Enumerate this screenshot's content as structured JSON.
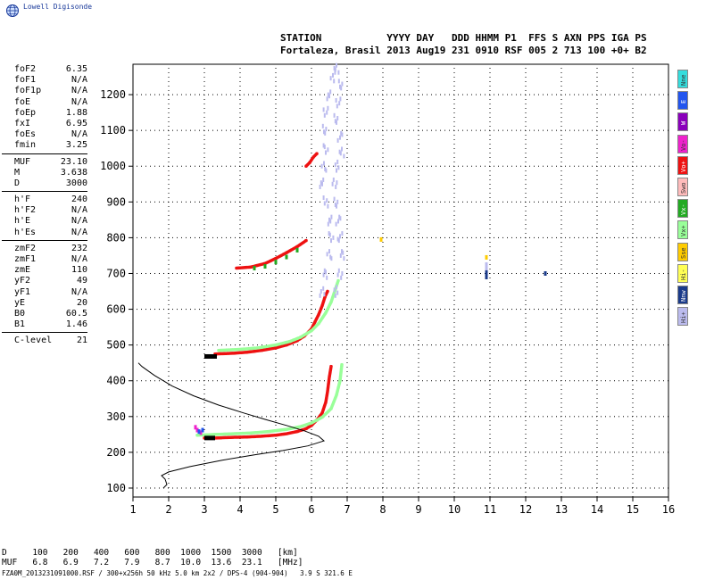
{
  "app": {
    "brand": "Lowell Digisonde",
    "logo_icon": "globe-icon"
  },
  "header": {
    "line1": "STATION           YYYY DAY   DDD HHMM P1  FFS S AXN PPS IGA PS",
    "line2": "Fortaleza, Brasil 2013 Aug19 231 0910 RSF 005 2 713 100 +0+ B2"
  },
  "parameters": {
    "group1": [
      {
        "label": "foF2",
        "value": "6.35"
      },
      {
        "label": "foF1",
        "value": "N/A"
      },
      {
        "label": "foF1p",
        "value": "N/A"
      },
      {
        "label": "foE",
        "value": "N/A"
      },
      {
        "label": "foEp",
        "value": "1.88"
      },
      {
        "label": "fxI",
        "value": "6.95"
      },
      {
        "label": "foEs",
        "value": "N/A"
      },
      {
        "label": "fmin",
        "value": "3.25"
      }
    ],
    "group2": [
      {
        "label": "MUF",
        "value": "23.10"
      },
      {
        "label": "M",
        "value": "3.638"
      },
      {
        "label": "D",
        "value": "3000"
      }
    ],
    "group3": [
      {
        "label": "h'F",
        "value": "240"
      },
      {
        "label": "h'F2",
        "value": "N/A"
      },
      {
        "label": "h'E",
        "value": "N/A"
      },
      {
        "label": "h'Es",
        "value": "N/A"
      }
    ],
    "group4": [
      {
        "label": "zmF2",
        "value": "232"
      },
      {
        "label": "zmF1",
        "value": "N/A"
      },
      {
        "label": "zmE",
        "value": "110"
      },
      {
        "label": "yF2",
        "value": "49"
      },
      {
        "label": "yF1",
        "value": "N/A"
      },
      {
        "label": "yE",
        "value": "20"
      },
      {
        "label": "B0",
        "value": "60.5"
      },
      {
        "label": "B1",
        "value": "1.46"
      }
    ],
    "group5": [
      {
        "label": "C-level",
        "value": "21"
      }
    ]
  },
  "legend": [
    {
      "label": "Nne",
      "color": "#33dddd"
    },
    {
      "label": "E",
      "color": "#2255ee"
    },
    {
      "label": "W",
      "color": "#8a00bb"
    },
    {
      "label": "Vo-",
      "color": "#ee22cc"
    },
    {
      "label": "Vo+",
      "color": "#ee1111"
    },
    {
      "label": "Swo",
      "color": "#ffbbbb"
    },
    {
      "label": "Vx-",
      "color": "#22aa22"
    },
    {
      "label": "Vx+",
      "color": "#99ff99"
    },
    {
      "label": "Sse",
      "color": "#ffcc00"
    },
    {
      "label": "Hi-",
      "color": "#ffff55"
    },
    {
      "label": "Nnw",
      "color": "#1a3a8a"
    },
    {
      "label": "Hi+",
      "color": "#bbbbee"
    }
  ],
  "muf_table": {
    "line1": "D     100   200   400   600   800  1000  1500  3000   [km]",
    "line2": "MUF   6.8   6.9   7.2   7.9   8.7  10.0  13.6  23.1   [MHz]"
  },
  "footer": {
    "text": "FZA0M_2013231091000.RSF / 300+x256h 50 kHz 5.0 km 2x2 / DPS-4 (904-904)   3.9 S 321.6 E"
  },
  "chart_data": {
    "type": "scatter",
    "title": "",
    "xlabel": "",
    "ylabel": "",
    "xlim": [
      1,
      16
    ],
    "ylim": [
      75,
      1285
    ],
    "xticks": [
      1,
      2,
      3,
      4,
      5,
      6,
      7,
      8,
      9,
      10,
      11,
      12,
      13,
      14,
      15,
      16
    ],
    "yticks": [
      100,
      200,
      300,
      400,
      500,
      600,
      700,
      800,
      900,
      1000,
      1100,
      1200
    ],
    "grid": true,
    "series": [
      {
        "name": "Vo+",
        "color": "#ee1111",
        "kind": "trace",
        "points": [
          [
            3.0,
            240
          ],
          [
            3.3,
            240
          ],
          [
            3.8,
            242
          ],
          [
            4.2,
            243
          ],
          [
            4.6,
            245
          ],
          [
            5.0,
            248
          ],
          [
            5.3,
            252
          ],
          [
            5.6,
            258
          ],
          [
            5.85,
            266
          ],
          [
            6.0,
            275
          ],
          [
            6.15,
            290
          ],
          [
            6.3,
            310
          ],
          [
            6.4,
            340
          ],
          [
            6.45,
            370
          ],
          [
            6.5,
            410
          ],
          [
            6.55,
            440
          ]
        ]
      },
      {
        "name": "Vx+",
        "color": "#99ff99",
        "kind": "trace",
        "points": [
          [
            2.8,
            248
          ],
          [
            3.3,
            250
          ],
          [
            3.8,
            252
          ],
          [
            4.3,
            254
          ],
          [
            4.8,
            258
          ],
          [
            5.3,
            264
          ],
          [
            5.7,
            272
          ],
          [
            6.0,
            282
          ],
          [
            6.3,
            298
          ],
          [
            6.55,
            322
          ],
          [
            6.7,
            360
          ],
          [
            6.8,
            400
          ],
          [
            6.85,
            445
          ]
        ]
      },
      {
        "name": "Vo+",
        "color": "#ee1111",
        "kind": "trace",
        "points": [
          [
            3.3,
            475
          ],
          [
            3.8,
            477
          ],
          [
            4.2,
            480
          ],
          [
            4.6,
            485
          ],
          [
            5.0,
            492
          ],
          [
            5.3,
            500
          ],
          [
            5.6,
            512
          ],
          [
            5.8,
            525
          ],
          [
            6.0,
            545
          ],
          [
            6.1,
            565
          ],
          [
            6.2,
            585
          ],
          [
            6.3,
            610
          ],
          [
            6.38,
            635
          ],
          [
            6.45,
            650
          ]
        ]
      },
      {
        "name": "Vx+",
        "color": "#99ff99",
        "kind": "trace",
        "points": [
          [
            3.4,
            485
          ],
          [
            4.0,
            488
          ],
          [
            4.5,
            492
          ],
          [
            5.0,
            500
          ],
          [
            5.4,
            510
          ],
          [
            5.7,
            522
          ],
          [
            6.0,
            540
          ],
          [
            6.2,
            560
          ],
          [
            6.4,
            590
          ],
          [
            6.55,
            620
          ],
          [
            6.65,
            650
          ],
          [
            6.75,
            680
          ]
        ]
      },
      {
        "name": "Vo+",
        "color": "#ee1111",
        "kind": "trace",
        "points": [
          [
            3.9,
            715
          ],
          [
            4.3,
            718
          ],
          [
            4.7,
            728
          ],
          [
            5.0,
            742
          ],
          [
            5.3,
            758
          ],
          [
            5.6,
            775
          ],
          [
            5.85,
            792
          ]
        ]
      },
      {
        "name": "Vo+",
        "color": "#ee1111",
        "kind": "trace",
        "points": [
          [
            5.85,
            1000
          ],
          [
            5.95,
            1010
          ],
          [
            6.05,
            1025
          ],
          [
            6.15,
            1035
          ]
        ]
      },
      {
        "name": "Hi+",
        "color": "#bbbbee",
        "kind": "band",
        "points": [
          [
            6.3,
            650
          ],
          [
            6.4,
            700
          ],
          [
            6.5,
            750
          ],
          [
            6.55,
            800
          ],
          [
            6.5,
            850
          ],
          [
            6.4,
            900
          ],
          [
            6.3,
            950
          ],
          [
            6.35,
            1000
          ],
          [
            6.4,
            1050
          ],
          [
            6.35,
            1100
          ],
          [
            6.4,
            1150
          ],
          [
            6.5,
            1200
          ],
          [
            6.6,
            1250
          ],
          [
            6.7,
            1270
          ],
          [
            6.8,
            1230
          ],
          [
            6.75,
            1180
          ],
          [
            6.7,
            1130
          ],
          [
            6.8,
            1080
          ],
          [
            6.85,
            1040
          ],
          [
            6.7,
            1000
          ],
          [
            6.65,
            950
          ],
          [
            6.7,
            900
          ],
          [
            6.75,
            850
          ],
          [
            6.8,
            800
          ],
          [
            6.85,
            750
          ],
          [
            6.8,
            700
          ],
          [
            6.7,
            650
          ]
        ]
      },
      {
        "name": "Sse",
        "color": "#ffcc00",
        "kind": "dots",
        "points": [
          [
            7.95,
            795
          ],
          [
            10.9,
            745
          ],
          [
            12.55,
            700
          ]
        ]
      },
      {
        "name": "Nnw",
        "color": "#1a3a8a",
        "kind": "dots",
        "points": [
          [
            10.9,
            700
          ],
          [
            10.9,
            705
          ],
          [
            10.9,
            690
          ],
          [
            12.55,
            700
          ]
        ]
      },
      {
        "name": "Hi+",
        "color": "#bbbbee",
        "kind": "dots",
        "points": [
          [
            10.9,
            725
          ],
          [
            10.9,
            715
          ]
        ]
      },
      {
        "name": "Vx-",
        "color": "#22aa22",
        "kind": "dots",
        "points": [
          [
            4.4,
            715
          ],
          [
            4.7,
            720
          ],
          [
            5.0,
            732
          ],
          [
            5.3,
            746
          ],
          [
            5.6,
            765
          ]
        ]
      },
      {
        "name": "Vo-",
        "color": "#ee22cc",
        "kind": "dots",
        "points": [
          [
            2.75,
            270
          ],
          [
            2.8,
            262
          ],
          [
            2.9,
            255
          ]
        ]
      },
      {
        "name": "E",
        "color": "#2255ee",
        "kind": "dots",
        "points": [
          [
            2.85,
            258
          ],
          [
            2.95,
            262
          ]
        ]
      },
      {
        "name": "Nnw",
        "color": "#000000",
        "kind": "bar",
        "points": [
          [
            3.0,
            240
          ],
          [
            3.3,
            240
          ],
          [
            3.0,
            468
          ],
          [
            3.35,
            468
          ]
        ]
      },
      {
        "name": "profile",
        "color": "#000000",
        "kind": "line",
        "points": [
          [
            1.85,
            100
          ],
          [
            1.95,
            110
          ],
          [
            1.9,
            125
          ],
          [
            1.8,
            135
          ],
          [
            2.0,
            145
          ],
          [
            2.6,
            160
          ],
          [
            3.5,
            178
          ],
          [
            4.4,
            193
          ],
          [
            5.2,
            205
          ],
          [
            5.9,
            218
          ],
          [
            6.35,
            232
          ],
          [
            6.2,
            245
          ],
          [
            5.8,
            260
          ],
          [
            5.3,
            275
          ],
          [
            4.7,
            292
          ],
          [
            4.1,
            310
          ],
          [
            3.4,
            332
          ],
          [
            2.7,
            358
          ],
          [
            2.1,
            385
          ],
          [
            1.6,
            415
          ],
          [
            1.25,
            440
          ],
          [
            1.15,
            450
          ]
        ]
      }
    ]
  }
}
